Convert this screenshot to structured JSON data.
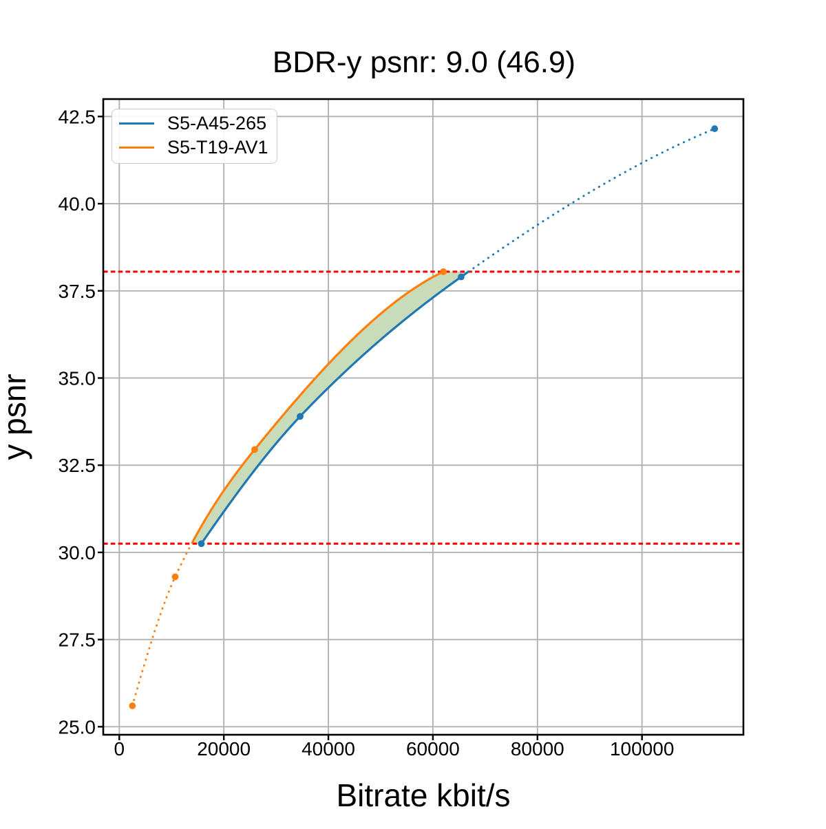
{
  "title": "BDR-y psnr: 9.0 (46.9)",
  "chart_data": {
    "type": "line",
    "title": "BDR-y psnr: 9.0 (46.9)",
    "xlabel": "Bitrate kbit/s",
    "ylabel": "y psnr",
    "xlim": [
      -3067,
      119400
    ],
    "ylim": [
      24.77,
      43.0
    ],
    "xticks": [
      0,
      20000,
      40000,
      60000,
      80000,
      100000
    ],
    "yticks": [
      25.0,
      27.5,
      30.0,
      32.5,
      35.0,
      37.5,
      40.0,
      42.5
    ],
    "grid": true,
    "legend_position": "upper left",
    "line_style_rule": "solid inside psnr overlap interval, dotted outside",
    "series": [
      {
        "name": "S5-A45-265",
        "color": "#1f77b4",
        "x": [
          15700,
          34600,
          65400,
          113900
        ],
        "y": [
          30.25,
          33.9,
          37.9,
          42.15
        ]
      },
      {
        "name": "S5-T19-AV1",
        "color": "#ff7f0e",
        "x": [
          2500,
          10700,
          25900,
          62000
        ],
        "y": [
          25.6,
          29.3,
          32.95,
          38.05
        ]
      }
    ],
    "hlines": [
      {
        "y": 30.25,
        "color": "#ff0000",
        "style": "dashed"
      },
      {
        "y": 38.05,
        "color": "#ff0000",
        "style": "dashed"
      }
    ],
    "fill_between": {
      "color": "#c9dcb9",
      "y_from": 30.25,
      "y_to": 38.05,
      "left_series": "S5-T19-AV1",
      "right_series": "S5-A45-265"
    }
  }
}
